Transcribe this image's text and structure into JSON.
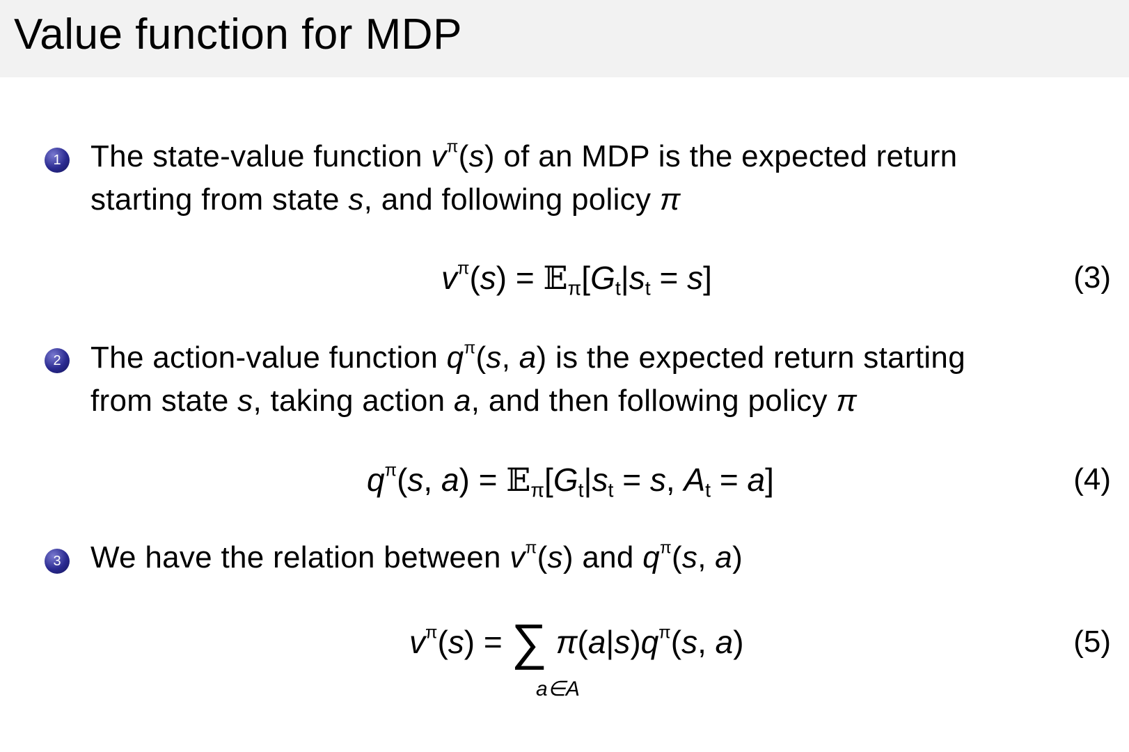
{
  "title": "Value function for MDP",
  "items": [
    {
      "number": "1",
      "lines": [
        [
          {
            "t": "The state-value function "
          },
          {
            "t": "v",
            "i": 1
          },
          {
            "t": "π",
            "sup": 1
          },
          {
            "t": "("
          },
          {
            "t": "s",
            "i": 1
          },
          {
            "t": ") of an MDP is the expected return"
          }
        ],
        [
          {
            "t": "starting from state "
          },
          {
            "t": "s",
            "i": 1
          },
          {
            "t": ", and following policy "
          },
          {
            "t": "π",
            "i": 1
          }
        ]
      ],
      "equation": [
        {
          "t": "v",
          "i": 1
        },
        {
          "t": "π",
          "sup": 1
        },
        {
          "t": "("
        },
        {
          "t": "s",
          "i": 1
        },
        {
          "t": ") = "
        },
        {
          "t": "𝔼",
          "bb": 1
        },
        {
          "t": "π",
          "sub": 1
        },
        {
          "t": "["
        },
        {
          "t": "G",
          "i": 1
        },
        {
          "t": "t",
          "sub": 1
        },
        {
          "t": "|"
        },
        {
          "t": "s",
          "i": 1
        },
        {
          "t": "t",
          "sub": 1
        },
        {
          "t": " = "
        },
        {
          "t": "s",
          "i": 1
        },
        {
          "t": "]"
        }
      ],
      "equation_number": "(3)"
    },
    {
      "number": "2",
      "lines": [
        [
          {
            "t": "The action-value function "
          },
          {
            "t": "q",
            "i": 1
          },
          {
            "t": "π",
            "sup": 1
          },
          {
            "t": "("
          },
          {
            "t": "s",
            "i": 1
          },
          {
            "t": ", "
          },
          {
            "t": "a",
            "i": 1
          },
          {
            "t": ") is the expected return starting"
          }
        ],
        [
          {
            "t": "from state "
          },
          {
            "t": "s",
            "i": 1
          },
          {
            "t": ", taking action "
          },
          {
            "t": "a",
            "i": 1
          },
          {
            "t": ", and then following policy "
          },
          {
            "t": "π",
            "i": 1
          }
        ]
      ],
      "equation": [
        {
          "t": "q",
          "i": 1
        },
        {
          "t": "π",
          "sup": 1
        },
        {
          "t": "("
        },
        {
          "t": "s",
          "i": 1
        },
        {
          "t": ", "
        },
        {
          "t": "a",
          "i": 1
        },
        {
          "t": ") = "
        },
        {
          "t": "𝔼",
          "bb": 1
        },
        {
          "t": "π",
          "sub": 1
        },
        {
          "t": "["
        },
        {
          "t": "G",
          "i": 1
        },
        {
          "t": "t",
          "sub": 1
        },
        {
          "t": "|"
        },
        {
          "t": "s",
          "i": 1
        },
        {
          "t": "t",
          "sub": 1
        },
        {
          "t": " = "
        },
        {
          "t": "s",
          "i": 1
        },
        {
          "t": ", "
        },
        {
          "t": "A",
          "i": 1
        },
        {
          "t": "t",
          "sub": 1
        },
        {
          "t": " = "
        },
        {
          "t": "a",
          "i": 1
        },
        {
          "t": "]"
        }
      ],
      "equation_number": "(4)"
    },
    {
      "number": "3",
      "lines": [
        [
          {
            "t": "We have the relation between "
          },
          {
            "t": "v",
            "i": 1
          },
          {
            "t": "π",
            "sup": 1
          },
          {
            "t": "("
          },
          {
            "t": "s",
            "i": 1
          },
          {
            "t": ") and "
          },
          {
            "t": "q",
            "i": 1
          },
          {
            "t": "π",
            "sup": 1
          },
          {
            "t": "("
          },
          {
            "t": "s",
            "i": 1
          },
          {
            "t": ", "
          },
          {
            "t": "a",
            "i": 1
          },
          {
            "t": ")"
          }
        ]
      ],
      "equation": [
        {
          "t": "v",
          "i": 1
        },
        {
          "t": "π",
          "sup": 1
        },
        {
          "t": "("
        },
        {
          "t": "s",
          "i": 1
        },
        {
          "t": ") = "
        },
        {
          "t": "∑",
          "sum": 1
        },
        {
          "t": " π",
          "i": 1
        },
        {
          "t": "("
        },
        {
          "t": "a",
          "i": 1
        },
        {
          "t": "|"
        },
        {
          "t": "s",
          "i": 1
        },
        {
          "t": ")"
        },
        {
          "t": "q",
          "i": 1
        },
        {
          "t": "π",
          "sup": 1
        },
        {
          "t": "("
        },
        {
          "t": "s",
          "i": 1
        },
        {
          "t": ", "
        },
        {
          "t": "a",
          "i": 1
        },
        {
          "t": ")"
        }
      ],
      "equation_under": "a∈A",
      "equation_number": "(5)"
    }
  ]
}
